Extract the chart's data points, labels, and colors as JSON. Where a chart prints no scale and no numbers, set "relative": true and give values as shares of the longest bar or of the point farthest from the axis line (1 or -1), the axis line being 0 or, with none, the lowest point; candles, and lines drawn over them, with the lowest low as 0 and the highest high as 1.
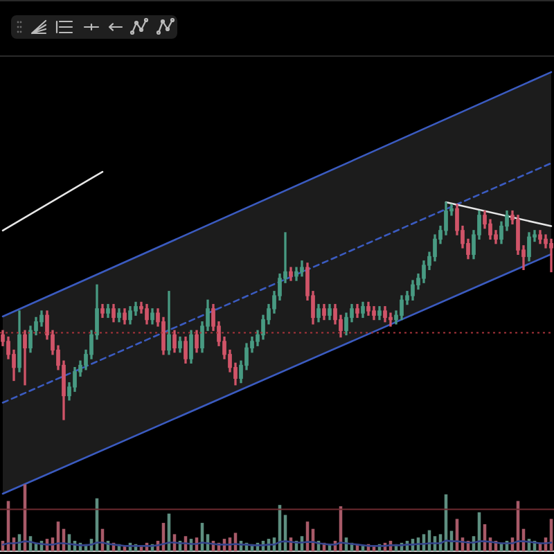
{
  "chart_data": [
    {
      "type": "candlestick",
      "relative": true,
      "categories": [
        null,
        null,
        null,
        null,
        null,
        null,
        null,
        null,
        null,
        null,
        null,
        null,
        null,
        null,
        null,
        null,
        null,
        null,
        null,
        null,
        null,
        null,
        null,
        null,
        null,
        null,
        null,
        null,
        null,
        null,
        null,
        null,
        null,
        null,
        null,
        null,
        null,
        null,
        null,
        null,
        null,
        null,
        null,
        null,
        null,
        null,
        null,
        null,
        null,
        null,
        null,
        null,
        null,
        null,
        null,
        null,
        null,
        null,
        null,
        null,
        null,
        null,
        null,
        null,
        null,
        null,
        null,
        null,
        null,
        null,
        null,
        null,
        null,
        null,
        null,
        null,
        null,
        null,
        null,
        null,
        null,
        null,
        null,
        null,
        null,
        null,
        null,
        null,
        null,
        null,
        null,
        null,
        null,
        null,
        null,
        null,
        null,
        null,
        null,
        null
      ],
      "ohlc": [
        [
          0.39,
          0.41,
          0.34,
          0.36
        ],
        [
          0.36,
          0.38,
          0.28,
          0.3
        ],
        [
          0.3,
          0.32,
          0.18,
          0.24
        ],
        [
          0.24,
          0.5,
          0.22,
          0.39
        ],
        [
          0.39,
          0.41,
          0.16,
          0.33
        ],
        [
          0.33,
          0.43,
          0.31,
          0.41
        ],
        [
          0.41,
          0.47,
          0.39,
          0.45
        ],
        [
          0.45,
          0.5,
          0.43,
          0.48
        ],
        [
          0.48,
          0.5,
          0.37,
          0.39
        ],
        [
          0.39,
          0.41,
          0.3,
          0.32
        ],
        [
          0.32,
          0.34,
          0.23,
          0.25
        ],
        [
          0.25,
          0.27,
          0,
          0.11
        ],
        [
          0.11,
          0.17,
          0.09,
          0.15
        ],
        [
          0.15,
          0.24,
          0.13,
          0.22
        ],
        [
          0.22,
          0.27,
          0.2,
          0.25
        ],
        [
          0.25,
          0.32,
          0.23,
          0.3
        ],
        [
          0.3,
          0.41,
          0.28,
          0.39
        ],
        [
          0.39,
          0.62,
          0.37,
          0.51
        ],
        [
          0.51,
          0.53,
          0.47,
          0.49
        ],
        [
          0.49,
          0.53,
          0.47,
          0.51
        ],
        [
          0.51,
          0.53,
          0.45,
          0.47
        ],
        [
          0.47,
          0.51,
          0.45,
          0.49
        ],
        [
          0.49,
          0.51,
          0.44,
          0.46
        ],
        [
          0.46,
          0.52,
          0.44,
          0.5
        ],
        [
          0.5,
          0.54,
          0.48,
          0.52
        ],
        [
          0.52,
          0.54,
          0.49,
          0.51
        ],
        [
          0.51,
          0.53,
          0.44,
          0.46
        ],
        [
          0.46,
          0.51,
          0.44,
          0.49
        ],
        [
          0.49,
          0.51,
          0.43,
          0.45
        ],
        [
          0.45,
          0.47,
          0.3,
          0.32
        ],
        [
          0.32,
          0.59,
          0.3,
          0.39
        ],
        [
          0.39,
          0.41,
          0.31,
          0.33
        ],
        [
          0.33,
          0.38,
          0.31,
          0.36
        ],
        [
          0.36,
          0.38,
          0.26,
          0.28
        ],
        [
          0.28,
          0.41,
          0.26,
          0.39
        ],
        [
          0.39,
          0.41,
          0.31,
          0.33
        ],
        [
          0.33,
          0.45,
          0.31,
          0.43
        ],
        [
          0.43,
          0.55,
          0.41,
          0.51
        ],
        [
          0.51,
          0.53,
          0.41,
          0.43
        ],
        [
          0.43,
          0.45,
          0.34,
          0.36
        ],
        [
          0.36,
          0.38,
          0.28,
          0.3
        ],
        [
          0.3,
          0.32,
          0.22,
          0.24
        ],
        [
          0.24,
          0.26,
          0.16,
          0.19
        ],
        [
          0.19,
          0.27,
          0.17,
          0.25
        ],
        [
          0.25,
          0.35,
          0.23,
          0.33
        ],
        [
          0.33,
          0.38,
          0.31,
          0.36
        ],
        [
          0.36,
          0.41,
          0.34,
          0.39
        ],
        [
          0.39,
          0.48,
          0.37,
          0.46
        ],
        [
          0.46,
          0.53,
          0.44,
          0.51
        ],
        [
          0.51,
          0.59,
          0.49,
          0.57
        ],
        [
          0.57,
          0.67,
          0.55,
          0.65
        ],
        [
          0.65,
          0.86,
          0.63,
          0.68
        ],
        [
          0.68,
          0.7,
          0.64,
          0.66
        ],
        [
          0.66,
          0.7,
          0.64,
          0.68
        ],
        [
          0.68,
          0.73,
          0.66,
          0.7
        ],
        [
          0.7,
          0.72,
          0.55,
          0.57
        ],
        [
          0.57,
          0.59,
          0.44,
          0.47
        ],
        [
          0.47,
          0.53,
          0.45,
          0.51
        ],
        [
          0.51,
          0.53,
          0.46,
          0.48
        ],
        [
          0.48,
          0.53,
          0.46,
          0.51
        ],
        [
          0.51,
          0.53,
          0.44,
          0.46
        ],
        [
          0.46,
          0.48,
          0.38,
          0.41
        ],
        [
          0.41,
          0.49,
          0.39,
          0.47
        ],
        [
          0.47,
          0.53,
          0.45,
          0.51
        ],
        [
          0.51,
          0.53,
          0.47,
          0.49
        ],
        [
          0.49,
          0.54,
          0.47,
          0.52
        ],
        [
          0.52,
          0.54,
          0.48,
          0.5
        ],
        [
          0.5,
          0.52,
          0.46,
          0.48
        ],
        [
          0.48,
          0.52,
          0.46,
          0.5
        ],
        [
          0.5,
          0.52,
          0.45,
          0.47
        ],
        [
          0.47,
          0.49,
          0.43,
          0.46
        ],
        [
          0.46,
          0.5,
          0.44,
          0.48
        ],
        [
          0.48,
          0.57,
          0.46,
          0.55
        ],
        [
          0.55,
          0.59,
          0.53,
          0.57
        ],
        [
          0.57,
          0.64,
          0.55,
          0.62
        ],
        [
          0.62,
          0.67,
          0.6,
          0.65
        ],
        [
          0.65,
          0.73,
          0.63,
          0.71
        ],
        [
          0.71,
          0.77,
          0.69,
          0.75
        ],
        [
          0.75,
          0.85,
          0.73,
          0.83
        ],
        [
          0.83,
          0.89,
          0.81,
          0.87
        ],
        [
          0.87,
          1,
          0.85,
          0.96
        ],
        [
          0.96,
          0.99,
          0.94,
          0.97
        ],
        [
          0.97,
          0.99,
          0.85,
          0.87
        ],
        [
          0.87,
          0.89,
          0.79,
          0.81
        ],
        [
          0.81,
          0.83,
          0.74,
          0.76
        ],
        [
          0.76,
          0.87,
          0.74,
          0.85
        ],
        [
          0.85,
          0.96,
          0.83,
          0.94
        ],
        [
          0.94,
          0.96,
          0.88,
          0.9
        ],
        [
          0.9,
          0.92,
          0.83,
          0.85
        ],
        [
          0.85,
          0.87,
          0.81,
          0.83
        ],
        [
          0.83,
          0.91,
          0.81,
          0.89
        ],
        [
          0.89,
          0.96,
          0.87,
          0.94
        ],
        [
          0.94,
          0.96,
          0.9,
          0.92
        ],
        [
          0.92,
          0.94,
          0.76,
          0.78
        ],
        [
          0.78,
          0.8,
          0.69,
          0.75
        ],
        [
          0.75,
          0.86,
          0.73,
          0.84
        ],
        [
          0.84,
          0.87,
          0.82,
          0.85
        ],
        [
          0.85,
          0.87,
          0.81,
          0.83
        ],
        [
          0.83,
          0.85,
          0.79,
          0.81
        ],
        [
          0.81,
          0.83,
          0.68,
          0.79
        ]
      ],
      "colors": [
        "#d05468",
        "#d05468",
        "#d05468",
        "#489a82",
        "#d05468",
        "#489a82",
        "#489a82",
        "#489a82",
        "#d05468",
        "#d05468",
        "#d05468",
        "#d05468",
        "#489a82",
        "#489a82",
        "#489a82",
        "#489a82",
        "#489a82",
        "#489a82",
        "#d05468",
        "#489a82",
        "#d05468",
        "#489a82",
        "#d05468",
        "#489a82",
        "#489a82",
        "#d05468",
        "#d05468",
        "#489a82",
        "#d05468",
        "#d05468",
        "#489a82",
        "#d05468",
        "#489a82",
        "#d05468",
        "#489a82",
        "#d05468",
        "#489a82",
        "#489a82",
        "#d05468",
        "#d05468",
        "#d05468",
        "#d05468",
        "#d05468",
        "#489a82",
        "#489a82",
        "#489a82",
        "#489a82",
        "#489a82",
        "#489a82",
        "#489a82",
        "#489a82",
        "#489a82",
        "#d05468",
        "#489a82",
        "#489a82",
        "#d05468",
        "#d05468",
        "#489a82",
        "#d05468",
        "#489a82",
        "#d05468",
        "#d05468",
        "#489a82",
        "#489a82",
        "#d05468",
        "#489a82",
        "#d05468",
        "#d05468",
        "#489a82",
        "#d05468",
        "#d05468",
        "#489a82",
        "#489a82",
        "#489a82",
        "#489a82",
        "#489a82",
        "#489a82",
        "#489a82",
        "#489a82",
        "#489a82",
        "#489a82",
        "#489a82",
        "#d05468",
        "#d05468",
        "#d05468",
        "#489a82",
        "#489a82",
        "#d05468",
        "#d05468",
        "#d05468",
        "#489a82",
        "#489a82",
        "#d05468",
        "#d05468",
        "#d05468",
        "#489a82",
        "#489a82",
        "#d05468",
        "#d05468",
        "#d05468"
      ],
      "series": [
        {
          "type": "line",
          "color": "#e6e6e6",
          "values": [
            0.87,
            null,
            null,
            null,
            null,
            null,
            null,
            null,
            null,
            null,
            null,
            null,
            null,
            null,
            null,
            null,
            null,
            null,
            1.14,
            null,
            null,
            null,
            null,
            null,
            null,
            null,
            null,
            null,
            null,
            null,
            null,
            null,
            null,
            null,
            null,
            null,
            null,
            null,
            null,
            null,
            null,
            null,
            null,
            null,
            null,
            null,
            null,
            null,
            null,
            null,
            null,
            null,
            null,
            null,
            null,
            null,
            null,
            null,
            null,
            null,
            null,
            null,
            null,
            null,
            null,
            null,
            null,
            null,
            null,
            null,
            null,
            null,
            null,
            null,
            null,
            null,
            null,
            null,
            null,
            null,
            null,
            null,
            null,
            null,
            null,
            null,
            null,
            null,
            null,
            null,
            null,
            null,
            null,
            null,
            null,
            null,
            null,
            null,
            null,
            null
          ]
        },
        {
          "type": "line",
          "color": "#e6e6e6",
          "values": [
            null,
            null,
            null,
            null,
            null,
            null,
            null,
            null,
            null,
            null,
            null,
            null,
            null,
            null,
            null,
            null,
            null,
            null,
            null,
            null,
            null,
            null,
            null,
            null,
            null,
            null,
            null,
            null,
            null,
            null,
            null,
            null,
            null,
            null,
            null,
            null,
            null,
            null,
            null,
            null,
            null,
            null,
            null,
            null,
            null,
            null,
            null,
            null,
            null,
            null,
            null,
            null,
            null,
            null,
            null,
            null,
            null,
            null,
            null,
            null,
            null,
            null,
            null,
            null,
            null,
            null,
            null,
            null,
            null,
            null,
            null,
            null,
            null,
            null,
            null,
            null,
            null,
            null,
            null,
            null,
            1,
            null,
            null,
            null,
            null,
            null,
            null,
            null,
            null,
            null,
            null,
            null,
            null,
            null,
            null,
            null,
            null,
            null,
            null,
            0.89
          ]
        }
      ],
      "ref_lines": [
        {
          "axis": "y",
          "value": 0.4,
          "color": "#a8333a",
          "line_style": "dotted"
        }
      ],
      "grid": false,
      "legend": false
    },
    {
      "type": "line",
      "relative": true,
      "categories": [
        null,
        null,
        null,
        null,
        null,
        null,
        null,
        null,
        null,
        null,
        null,
        null,
        null,
        null,
        null,
        null,
        null,
        null,
        null,
        null,
        null,
        null,
        null,
        null,
        null,
        null,
        null,
        null,
        null,
        null,
        null,
        null,
        null,
        null,
        null,
        null,
        null,
        null,
        null,
        null,
        null,
        null,
        null,
        null,
        null,
        null,
        null,
        null,
        null,
        null,
        null,
        null,
        null,
        null,
        null,
        null,
        null,
        null,
        null,
        null,
        null,
        null,
        null,
        null,
        null,
        null,
        null,
        null,
        null,
        null,
        null,
        null,
        null,
        null,
        null,
        null,
        null,
        null,
        null,
        null,
        null,
        null,
        null,
        null,
        null,
        null,
        null,
        null,
        null,
        null,
        null,
        null,
        null,
        null,
        null,
        null,
        null,
        null,
        null,
        null
      ],
      "series": [
        {
          "color": "#3b5bc0",
          "values": [
            0.49,
            null,
            null,
            null,
            null,
            null,
            null,
            null,
            null,
            null,
            null,
            null,
            null,
            null,
            null,
            null,
            null,
            null,
            null,
            null,
            null,
            null,
            null,
            null,
            null,
            null,
            null,
            null,
            null,
            null,
            null,
            null,
            null,
            null,
            null,
            null,
            null,
            null,
            null,
            null,
            null,
            null,
            null,
            null,
            null,
            null,
            null,
            null,
            null,
            null,
            null,
            null,
            null,
            null,
            null,
            null,
            null,
            null,
            null,
            null,
            null,
            null,
            null,
            null,
            null,
            null,
            null,
            null,
            null,
            null,
            null,
            null,
            null,
            null,
            null,
            null,
            null,
            null,
            null,
            null,
            null,
            null,
            null,
            null,
            null,
            null,
            null,
            null,
            null,
            null,
            null,
            null,
            null,
            null,
            null,
            null,
            null,
            null,
            null,
            1
          ]
        },
        {
          "color": "#3b5bc0",
          "values": [
            0.12,
            null,
            null,
            null,
            null,
            null,
            null,
            null,
            null,
            null,
            null,
            null,
            null,
            null,
            null,
            null,
            null,
            null,
            null,
            null,
            null,
            null,
            null,
            null,
            null,
            null,
            null,
            null,
            null,
            null,
            null,
            null,
            null,
            null,
            null,
            null,
            null,
            null,
            null,
            null,
            null,
            null,
            null,
            null,
            null,
            null,
            null,
            null,
            null,
            null,
            null,
            null,
            null,
            null,
            null,
            null,
            null,
            null,
            null,
            null,
            null,
            null,
            null,
            null,
            null,
            null,
            null,
            null,
            null,
            null,
            null,
            null,
            null,
            null,
            null,
            null,
            null,
            null,
            null,
            null,
            null,
            null,
            null,
            null,
            null,
            null,
            null,
            null,
            null,
            null,
            null,
            null,
            null,
            null,
            null,
            null,
            null,
            null,
            null,
            0.62
          ]
        },
        {
          "color": "#3b5bc0",
          "line_style": "dashed",
          "values": [
            0.31,
            null,
            null,
            null,
            null,
            null,
            null,
            null,
            null,
            null,
            null,
            null,
            null,
            null,
            null,
            null,
            null,
            null,
            null,
            null,
            null,
            null,
            null,
            null,
            null,
            null,
            null,
            null,
            null,
            null,
            null,
            null,
            null,
            null,
            null,
            null,
            null,
            null,
            null,
            null,
            null,
            null,
            null,
            null,
            null,
            null,
            null,
            null,
            null,
            null,
            null,
            null,
            null,
            null,
            null,
            null,
            null,
            null,
            null,
            null,
            null,
            null,
            null,
            null,
            null,
            null,
            null,
            null,
            null,
            null,
            null,
            null,
            null,
            null,
            null,
            null,
            null,
            null,
            null,
            null,
            null,
            null,
            null,
            null,
            null,
            null,
            null,
            null,
            null,
            null,
            null,
            null,
            null,
            null,
            null,
            null,
            null,
            null,
            null,
            0.81
          ],
          "lower": [
            0.12,
            null,
            null,
            null,
            null,
            null,
            null,
            null,
            null,
            null,
            null,
            null,
            null,
            null,
            null,
            null,
            null,
            null,
            null,
            null,
            null,
            null,
            null,
            null,
            null,
            null,
            null,
            null,
            null,
            null,
            null,
            null,
            null,
            null,
            null,
            null,
            null,
            null,
            null,
            null,
            null,
            null,
            null,
            null,
            null,
            null,
            null,
            null,
            null,
            null,
            null,
            null,
            null,
            null,
            null,
            null,
            null,
            null,
            null,
            null,
            null,
            null,
            null,
            null,
            null,
            null,
            null,
            null,
            null,
            null,
            null,
            null,
            null,
            null,
            null,
            null,
            null,
            null,
            null,
            null,
            null,
            null,
            null,
            null,
            null,
            null,
            null,
            null,
            null,
            null,
            null,
            null,
            null,
            null,
            null,
            null,
            null,
            null,
            null,
            0.62
          ],
          "upper": [
            0.49,
            null,
            null,
            null,
            null,
            null,
            null,
            null,
            null,
            null,
            null,
            null,
            null,
            null,
            null,
            null,
            null,
            null,
            null,
            null,
            null,
            null,
            null,
            null,
            null,
            null,
            null,
            null,
            null,
            null,
            null,
            null,
            null,
            null,
            null,
            null,
            null,
            null,
            null,
            null,
            null,
            null,
            null,
            null,
            null,
            null,
            null,
            null,
            null,
            null,
            null,
            null,
            null,
            null,
            null,
            null,
            null,
            null,
            null,
            null,
            null,
            null,
            null,
            null,
            null,
            null,
            null,
            null,
            null,
            null,
            null,
            null,
            null,
            null,
            null,
            null,
            null,
            null,
            null,
            null,
            null,
            null,
            null,
            null,
            null,
            null,
            null,
            null,
            null,
            null,
            null,
            null,
            null,
            null,
            null,
            null,
            null,
            null,
            null,
            1
          ]
        }
      ],
      "grid": false,
      "legend": false
    },
    {
      "type": "bar",
      "relative": true,
      "categories": [
        null,
        null,
        null,
        null,
        null,
        null,
        null,
        null,
        null,
        null,
        null,
        null,
        null,
        null,
        null,
        null,
        null,
        null,
        null,
        null,
        null,
        null,
        null,
        null,
        null,
        null,
        null,
        null,
        null,
        null,
        null,
        null,
        null,
        null,
        null,
        null,
        null,
        null,
        null,
        null,
        null,
        null,
        null,
        null,
        null,
        null,
        null,
        null,
        null,
        null,
        null,
        null,
        null,
        null,
        null,
        null,
        null,
        null,
        null,
        null,
        null,
        null,
        null,
        null,
        null,
        null,
        null,
        null,
        null,
        null,
        null,
        null,
        null,
        null,
        null,
        null,
        null,
        null,
        null,
        null,
        null,
        null,
        null,
        null,
        null,
        null,
        null,
        null,
        null,
        null,
        null,
        null,
        null,
        null,
        null,
        null,
        null,
        null,
        null,
        null
      ],
      "series": [
        {
          "values": [
            0.15,
            0.75,
            0.2,
            0.25,
            1,
            0.22,
            0.12,
            0.15,
            0.18,
            0.2,
            0.44,
            0.33,
            0.25,
            0.15,
            0.12,
            0.1,
            0.18,
            0.79,
            0.33,
            0.15,
            0.12,
            0.1,
            0.08,
            0.12,
            0.1,
            0.08,
            0.12,
            0.1,
            0.15,
            0.42,
            0.56,
            0.25,
            0.15,
            0.22,
            0.18,
            0.2,
            0.42,
            0.25,
            0.15,
            0.12,
            0.18,
            0.2,
            0.27,
            0.15,
            0.12,
            0.1,
            0.12,
            0.15,
            0.18,
            0.2,
            0.69,
            0.54,
            0.2,
            0.15,
            0.22,
            0.44,
            0.33,
            0.15,
            0.12,
            0.1,
            0.15,
            0.67,
            0.2,
            0.12,
            0.1,
            0.08,
            0.1,
            0.08,
            0.1,
            0.12,
            0.15,
            0.1,
            0.12,
            0.15,
            0.18,
            0.2,
            0.25,
            0.31,
            0.22,
            0.25,
            0.85,
            0.3,
            0.48,
            0.2,
            0.15,
            0.22,
            0.58,
            0.4,
            0.2,
            0.15,
            0.12,
            0.15,
            0.2,
            0.75,
            0.33,
            0.18,
            0.15,
            0.12,
            0.2,
            0.48
          ],
          "colors": [
            "#a85a68",
            "#a85a68",
            "#a85a68",
            "#5e8f80",
            "#a85a68",
            "#5e8f80",
            "#5e8f80",
            "#5e8f80",
            "#a85a68",
            "#a85a68",
            "#a85a68",
            "#a85a68",
            "#5e8f80",
            "#5e8f80",
            "#5e8f80",
            "#5e8f80",
            "#5e8f80",
            "#5e8f80",
            "#a85a68",
            "#5e8f80",
            "#a85a68",
            "#5e8f80",
            "#a85a68",
            "#5e8f80",
            "#5e8f80",
            "#a85a68",
            "#a85a68",
            "#5e8f80",
            "#a85a68",
            "#a85a68",
            "#5e8f80",
            "#a85a68",
            "#5e8f80",
            "#a85a68",
            "#5e8f80",
            "#a85a68",
            "#5e8f80",
            "#5e8f80",
            "#a85a68",
            "#a85a68",
            "#a85a68",
            "#a85a68",
            "#a85a68",
            "#5e8f80",
            "#5e8f80",
            "#5e8f80",
            "#5e8f80",
            "#5e8f80",
            "#5e8f80",
            "#5e8f80",
            "#5e8f80",
            "#5e8f80",
            "#a85a68",
            "#5e8f80",
            "#5e8f80",
            "#a85a68",
            "#a85a68",
            "#5e8f80",
            "#a85a68",
            "#5e8f80",
            "#a85a68",
            "#a85a68",
            "#5e8f80",
            "#5e8f80",
            "#a85a68",
            "#5e8f80",
            "#a85a68",
            "#a85a68",
            "#5e8f80",
            "#a85a68",
            "#a85a68",
            "#5e8f80",
            "#5e8f80",
            "#5e8f80",
            "#5e8f80",
            "#5e8f80",
            "#5e8f80",
            "#5e8f80",
            "#5e8f80",
            "#5e8f80",
            "#5e8f80",
            "#5e8f80",
            "#a85a68",
            "#a85a68",
            "#a85a68",
            "#5e8f80",
            "#5e8f80",
            "#a85a68",
            "#a85a68",
            "#a85a68",
            "#5e8f80",
            "#5e8f80",
            "#a85a68",
            "#a85a68",
            "#a85a68",
            "#5e8f80",
            "#5e8f80",
            "#a85a68",
            "#a85a68",
            "#a85a68"
          ]
        },
        {
          "type": "line",
          "color": "#34448c",
          "values": [
            0.1,
            0.12,
            0.12,
            0.13,
            0.15,
            0.14,
            0.12,
            0.11,
            0.1,
            0.1,
            0.12,
            0.12,
            0.11,
            0.1,
            0.09,
            0.09,
            0.1,
            0.13,
            0.13,
            0.11,
            0.1,
            0.09,
            0.08,
            0.08,
            0.08,
            0.08,
            0.08,
            0.08,
            0.09,
            0.11,
            0.13,
            0.13,
            0.12,
            0.12,
            0.11,
            0.11,
            0.13,
            0.12,
            0.11,
            0.1,
            0.1,
            0.1,
            0.11,
            0.1,
            0.1,
            0.09,
            0.09,
            0.09,
            0.1,
            0.1,
            0.14,
            0.15,
            0.14,
            0.13,
            0.13,
            0.14,
            0.14,
            0.12,
            0.11,
            0.1,
            0.1,
            0.13,
            0.12,
            0.11,
            0.1,
            0.09,
            0.08,
            0.08,
            0.08,
            0.08,
            0.09,
            0.09,
            0.09,
            0.1,
            0.1,
            0.11,
            0.11,
            0.12,
            0.12,
            0.12,
            0.16,
            0.15,
            0.15,
            0.14,
            0.13,
            0.13,
            0.15,
            0.15,
            0.14,
            0.13,
            0.12,
            0.12,
            0.12,
            0.15,
            0.15,
            0.14,
            0.13,
            0.12,
            0.12,
            0.13
          ]
        }
      ],
      "ref_lines": [
        {
          "axis": "y",
          "value": 0.63,
          "color": "#6e2b31"
        }
      ],
      "grid": false,
      "legend": false
    }
  ]
}
